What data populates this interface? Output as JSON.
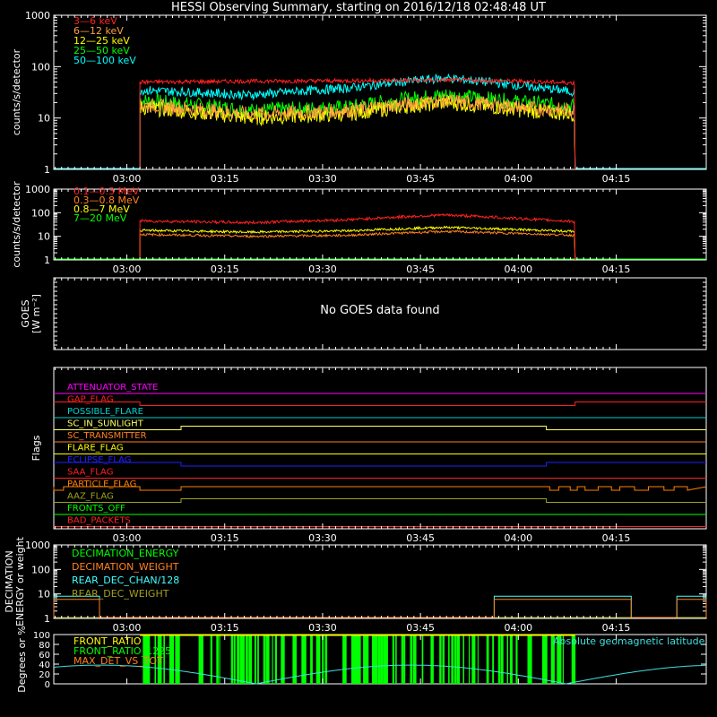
{
  "title": "HESSI Observing Summary, starting on 2016/12/18 02:48:48 UT",
  "time_ticks": [
    "03:00",
    "03:15",
    "03:30",
    "03:45",
    "04:00",
    "04:15"
  ],
  "chart_data": [
    {
      "type": "line",
      "panel": "lightcurve-low",
      "ylabel": "counts/s/detector",
      "yscale": "log",
      "ylim": [
        1,
        1000
      ],
      "yticks": [
        "1",
        "10",
        "100",
        "1000"
      ],
      "x_unit": "minutes after 02:48:48 UT",
      "xlim": [
        0,
        100
      ],
      "data_start": 13.2,
      "data_end": 79.9,
      "series": [
        {
          "name": "3—6 keV",
          "color": "#ff2020",
          "values_at": [
            13.2,
            30,
            45,
            60,
            72,
            79.9
          ],
          "values": [
            50,
            52,
            53,
            55,
            52,
            48
          ]
        },
        {
          "name": "6—12 keV",
          "color": "#ffa040",
          "values_at": [
            13.2,
            30,
            45,
            60,
            72,
            79.9
          ],
          "values": [
            18,
            12,
            14,
            22,
            16,
            14
          ]
        },
        {
          "name": "12—25 keV",
          "color": "#ffff00",
          "values_at": [
            13.2,
            30,
            45,
            60,
            72,
            79.9
          ],
          "values": [
            16,
            10,
            12,
            20,
            14,
            12
          ]
        },
        {
          "name": "25—50 keV",
          "color": "#00ff00",
          "values_at": [
            13.2,
            30,
            45,
            60,
            72,
            79.9
          ],
          "values": [
            22,
            14,
            16,
            28,
            20,
            17
          ]
        },
        {
          "name": "50—100 keV",
          "color": "#00ffff",
          "values_at": [
            13.2,
            30,
            45,
            60,
            72,
            79.9
          ],
          "values": [
            35,
            28,
            38,
            60,
            42,
            32
          ]
        }
      ]
    },
    {
      "type": "line",
      "panel": "lightcurve-high",
      "ylabel": "counts/s/detector",
      "yscale": "log",
      "ylim": [
        1,
        1000
      ],
      "yticks": [
        "1",
        "10",
        "100",
        "1000"
      ],
      "series": [
        {
          "name": "0.1—0.3 MeV",
          "color": "#ff2020",
          "values_at": [
            13.2,
            30,
            45,
            60,
            72,
            79.9
          ],
          "values": [
            45,
            38,
            50,
            80,
            55,
            42
          ]
        },
        {
          "name": "0.3—0.8 MeV",
          "color": "#ff8020",
          "values_at": [
            13.2,
            30,
            45,
            60,
            72,
            79.9
          ],
          "values": [
            12,
            10,
            11,
            16,
            13,
            11
          ]
        },
        {
          "name": "0.8—7 MeV",
          "color": "#ffff00",
          "values_at": [
            13.2,
            30,
            45,
            60,
            72,
            79.9
          ],
          "values": [
            18,
            15,
            17,
            24,
            19,
            16
          ]
        },
        {
          "name": "7—20 MeV",
          "color": "#00ff00",
          "values_at": [
            0,
            100
          ],
          "values": [
            1,
            1
          ]
        }
      ]
    },
    {
      "type": "line",
      "panel": "goes",
      "ylabel_lines": [
        "GOES",
        "[W m⁻²]"
      ],
      "message": "No GOES data found"
    },
    {
      "type": "line",
      "panel": "flags",
      "ylabel": "Flags",
      "flags": [
        {
          "name": "ATTENUATOR_STATE",
          "color": "#ff00ff",
          "transitions": []
        },
        {
          "name": "GAP_FLAG",
          "color": "#ff2020",
          "transitions": [
            13.2,
            79.9
          ]
        },
        {
          "name": "POSSIBLE_FLARE",
          "color": "#00d0d0",
          "transitions": []
        },
        {
          "name": "SC_IN_SUNLIGHT",
          "color": "#ffff60",
          "transitions": [
            19.5,
            75.5
          ]
        },
        {
          "name": "SC_TRANSMITTER",
          "color": "#ff8020",
          "transitions": []
        },
        {
          "name": "FLARE_FLAG",
          "color": "#ffff00",
          "transitions": []
        },
        {
          "name": "ECLIPSE_FLAG",
          "color": "#2020ff",
          "transitions": [
            19.5,
            75.5
          ]
        },
        {
          "name": "SAA_FLAG",
          "color": "#ff2020",
          "transitions": []
        },
        {
          "name": "PARTICLE_FLAG",
          "color": "#ff8000",
          "transitions": [
            0,
            1.5,
            13.2,
            19.5
          ]
        },
        {
          "name": "AAZ_FLAG",
          "color": "#a0a020",
          "transitions": [
            19.5,
            75.5
          ]
        },
        {
          "name": "FRONTS_OFF",
          "color": "#00ff00",
          "transitions": []
        },
        {
          "name": "BAD_PACKETS",
          "color": "#ff2020",
          "transitions": []
        }
      ]
    },
    {
      "type": "line",
      "panel": "decimation",
      "ylabel_lines": [
        "DECIMATION",
        "ENERGY or weight"
      ],
      "yscale": "log",
      "ylim": [
        1,
        1000
      ],
      "yticks": [
        "1",
        "10",
        "100",
        "1000"
      ],
      "series": [
        {
          "name": "DECIMATION_ENERGY",
          "color": "#00ff00"
        },
        {
          "name": "DECIMATION_WEIGHT",
          "color": "#ff8020"
        },
        {
          "name": "REAR_DEC_CHAN/128",
          "color": "#40ffff"
        },
        {
          "name": "REAR_DEC_WEIGHT",
          "color": "#a0a020"
        }
      ]
    },
    {
      "type": "line",
      "panel": "ratios",
      "ylabel": "Degrees or %",
      "ylim": [
        0,
        100
      ],
      "yticks": [
        "0",
        "20",
        "40",
        "60",
        "80",
        "100"
      ],
      "series": [
        {
          "name": "FRONT_RATIO",
          "color": "#ffff00"
        },
        {
          "name": "FRONT_RATIO_1225",
          "color": "#00ff00"
        },
        {
          "name": "MAX_DET_VS_TOT",
          "color": "#ff8020"
        },
        {
          "name": "Absolute geomagnetic latitude",
          "color": "#40e0e0"
        }
      ]
    }
  ]
}
